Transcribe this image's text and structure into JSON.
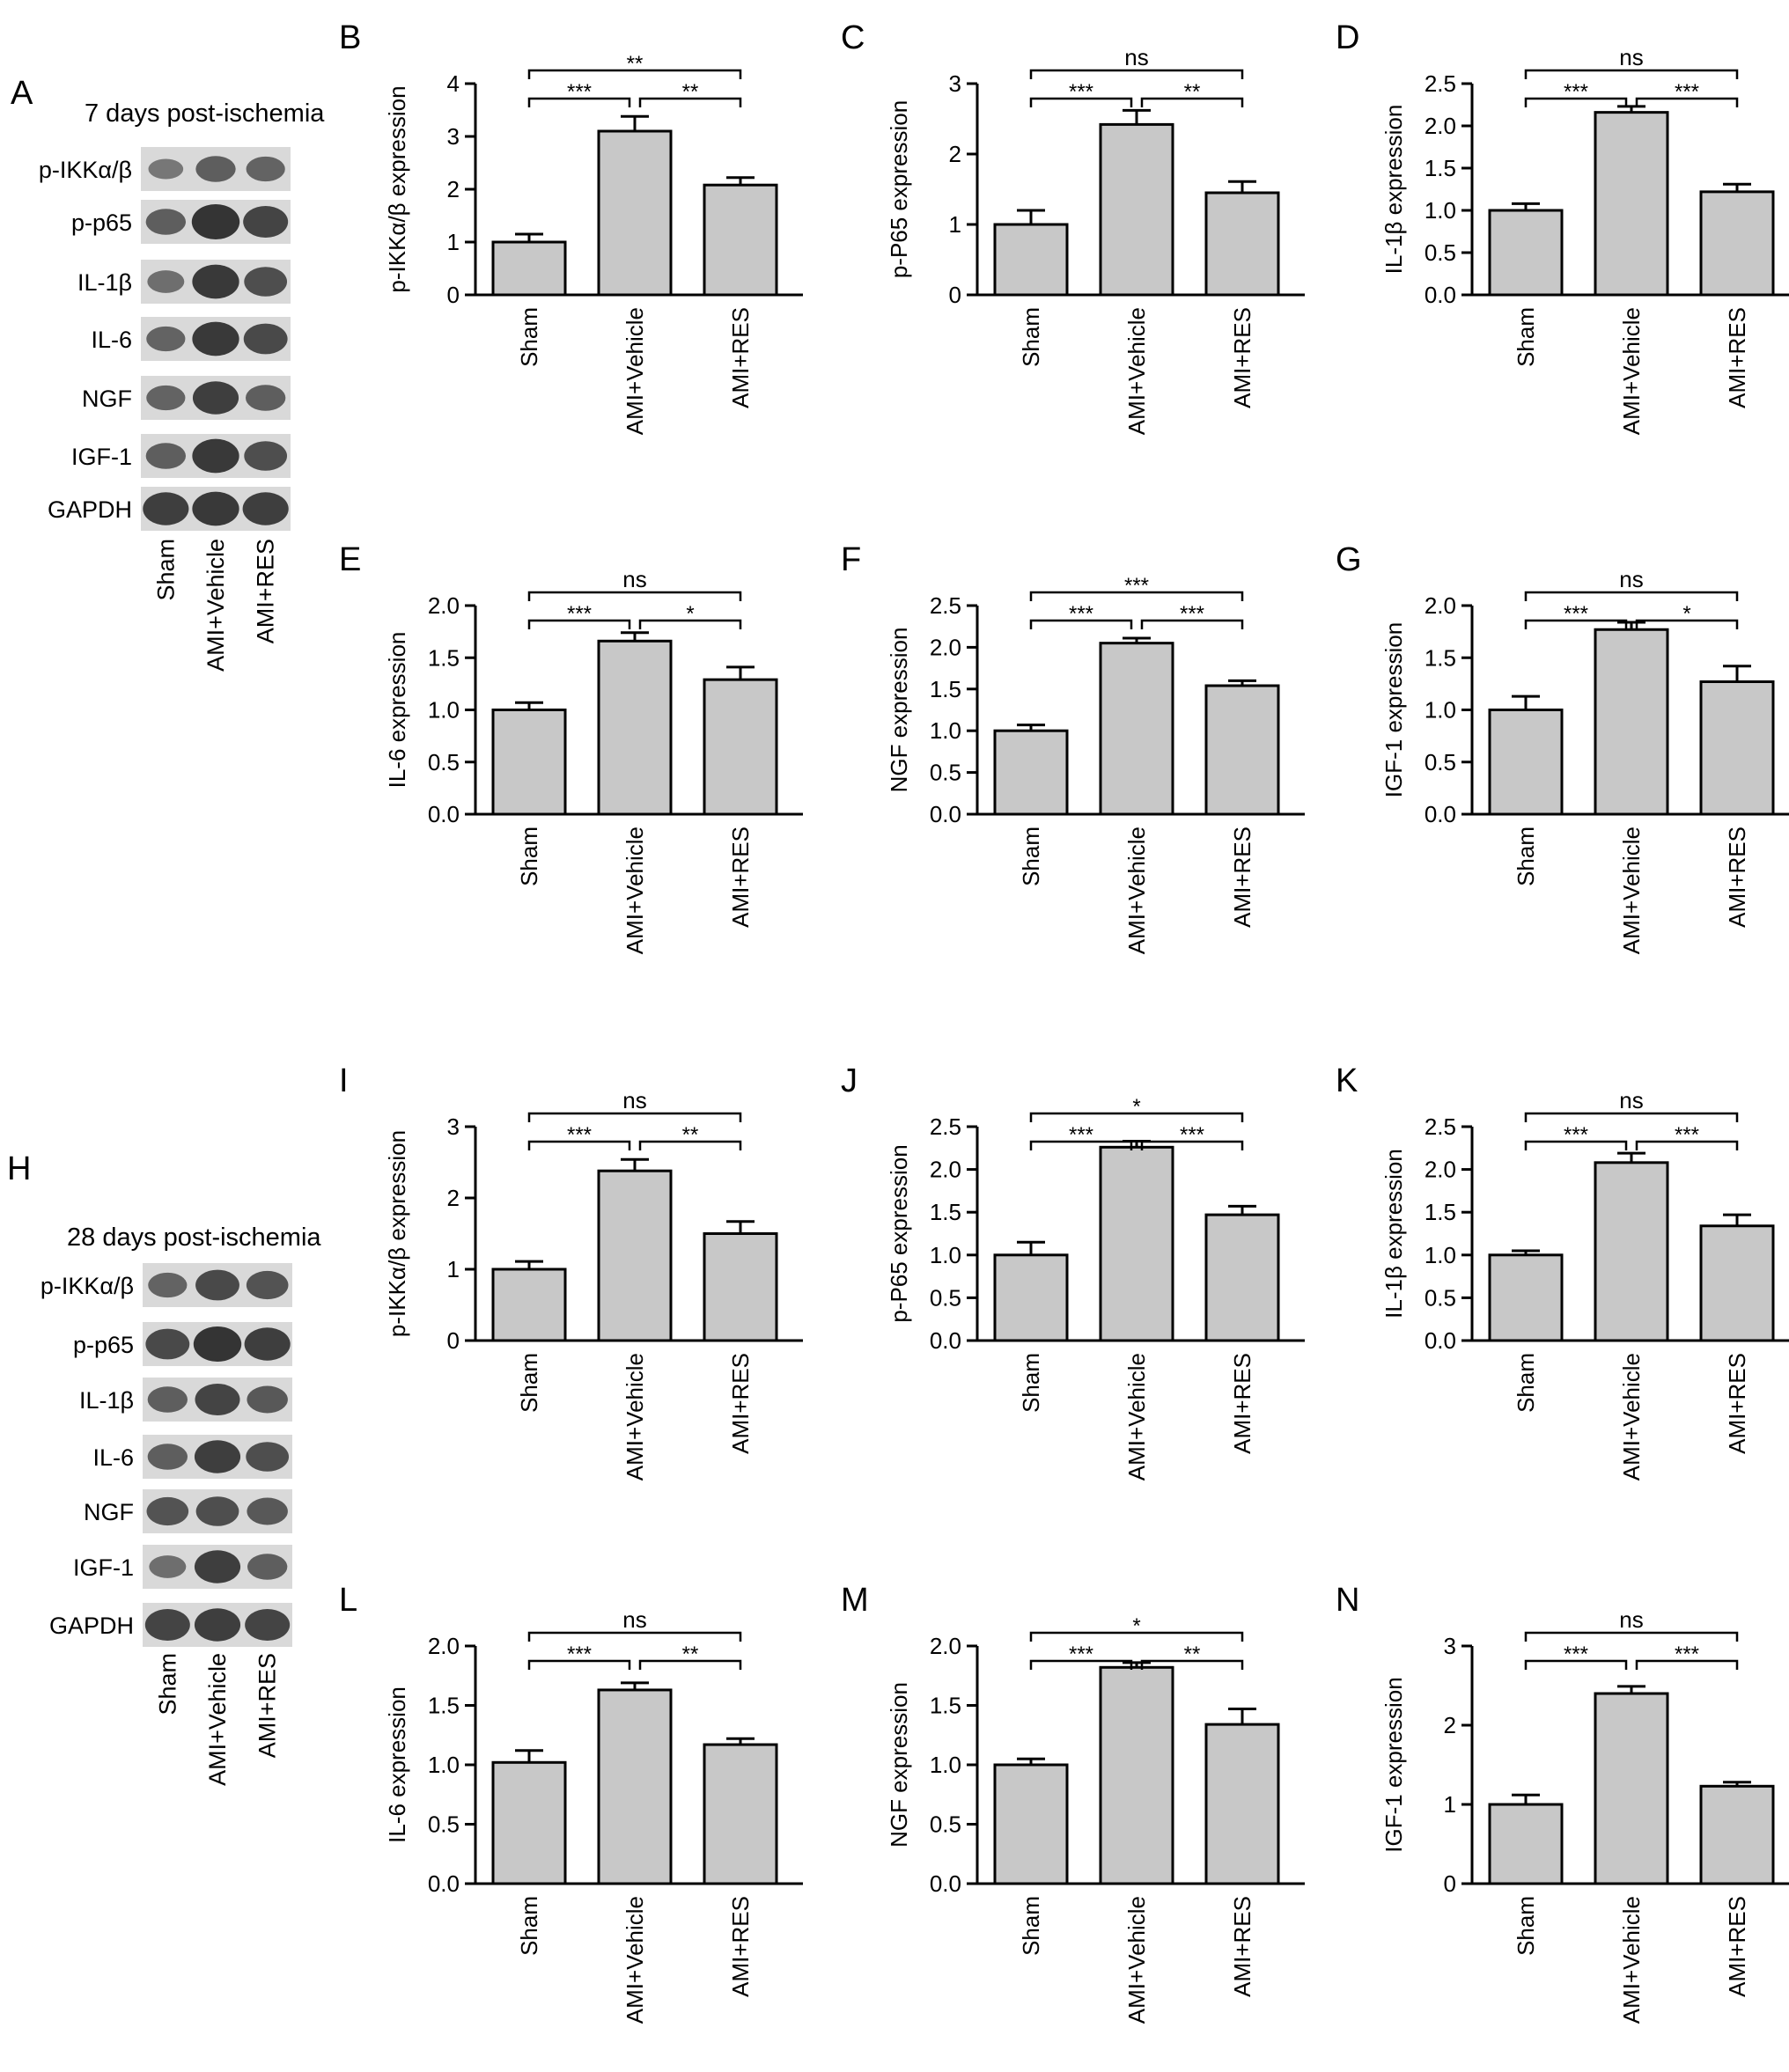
{
  "colors": {
    "bar_fill": "#c8c8c8",
    "stroke": "#000000",
    "blot_band": "#2b2b2b",
    "blot_background": "#d9d9d9"
  },
  "blots": [
    {
      "letter": "A",
      "title": "7 days post-ischemia",
      "rows": [
        {
          "label": "p-IKKα/β",
          "intensities": [
            0.35,
            0.6,
            0.55
          ]
        },
        {
          "label": "p-p65",
          "intensities": [
            0.6,
            1.0,
            0.85
          ]
        },
        {
          "label": "IL-1β",
          "intensities": [
            0.45,
            0.95,
            0.75
          ]
        },
        {
          "label": "IL-6",
          "intensities": [
            0.55,
            0.95,
            0.8
          ]
        },
        {
          "label": "NGF",
          "intensities": [
            0.55,
            0.9,
            0.6
          ]
        },
        {
          "label": "IGF-1",
          "intensities": [
            0.6,
            0.95,
            0.75
          ]
        },
        {
          "label": "GAPDH",
          "intensities": [
            0.9,
            0.95,
            0.9
          ]
        }
      ],
      "lanes": [
        "Sham",
        "AMI+Vehicle",
        "AMI+RES"
      ]
    },
    {
      "letter": "H",
      "title": "28 days post-ischemia",
      "rows": [
        {
          "label": "p-IKKα/β",
          "intensities": [
            0.55,
            0.8,
            0.7
          ]
        },
        {
          "label": "p-p65",
          "intensities": [
            0.8,
            1.0,
            0.9
          ]
        },
        {
          "label": "IL-1β",
          "intensities": [
            0.6,
            0.85,
            0.65
          ]
        },
        {
          "label": "IL-6",
          "intensities": [
            0.6,
            0.9,
            0.75
          ]
        },
        {
          "label": "NGF",
          "intensities": [
            0.7,
            0.75,
            0.65
          ]
        },
        {
          "label": "IGF-1",
          "intensities": [
            0.45,
            0.9,
            0.6
          ]
        },
        {
          "label": "GAPDH",
          "intensities": [
            0.85,
            0.9,
            0.85
          ]
        }
      ],
      "lanes": [
        "Sham",
        "AMI+Vehicle",
        "AMI+RES"
      ]
    }
  ],
  "chart_data": [
    {
      "letter": "B",
      "type": "bar",
      "categories": [
        "Sham",
        "AMI+Vehicle",
        "AMI+RES"
      ],
      "values": [
        1.0,
        3.1,
        2.08
      ],
      "errors": [
        0.15,
        0.28,
        0.14
      ],
      "ylabel": "p-IKKα/β expression",
      "ylim": [
        0,
        4
      ],
      "yticks": [
        "0",
        "1",
        "2",
        "3",
        "4"
      ],
      "significance": [
        "***",
        "**",
        "**"
      ]
    },
    {
      "letter": "C",
      "type": "bar",
      "categories": [
        "Sham",
        "AMI+Vehicle",
        "AMI+RES"
      ],
      "values": [
        1.0,
        2.42,
        1.45
      ],
      "errors": [
        0.2,
        0.2,
        0.16
      ],
      "ylabel": "p-P65 expression",
      "ylim": [
        0,
        3
      ],
      "yticks": [
        "0",
        "1",
        "2",
        "3"
      ],
      "significance": [
        "***",
        "**",
        "ns"
      ]
    },
    {
      "letter": "D",
      "type": "bar",
      "categories": [
        "Sham",
        "AMI+Vehicle",
        "AMI+RES"
      ],
      "values": [
        1.0,
        2.16,
        1.22
      ],
      "errors": [
        0.08,
        0.07,
        0.09
      ],
      "ylabel": "IL-1β expression",
      "ylim": [
        0,
        2.5
      ],
      "yticks": [
        "0.0",
        "0.5",
        "1.0",
        "1.5",
        "2.0",
        "2.5"
      ],
      "significance": [
        "***",
        "***",
        "ns"
      ]
    },
    {
      "letter": "E",
      "type": "bar",
      "categories": [
        "Sham",
        "AMI+Vehicle",
        "AMI+RES"
      ],
      "values": [
        1.0,
        1.66,
        1.29
      ],
      "errors": [
        0.07,
        0.08,
        0.12
      ],
      "ylabel": "IL-6 expression",
      "ylim": [
        0,
        2.0
      ],
      "yticks": [
        "0.0",
        "0.5",
        "1.0",
        "1.5",
        "2.0"
      ],
      "significance": [
        "***",
        "*",
        "ns"
      ]
    },
    {
      "letter": "F",
      "type": "bar",
      "categories": [
        "Sham",
        "AMI+Vehicle",
        "AMI+RES"
      ],
      "values": [
        1.0,
        2.05,
        1.54
      ],
      "errors": [
        0.07,
        0.06,
        0.06
      ],
      "ylabel": "NGF expression",
      "ylim": [
        0,
        2.5
      ],
      "yticks": [
        "0.0",
        "0.5",
        "1.0",
        "1.5",
        "2.0",
        "2.5"
      ],
      "significance": [
        "***",
        "***",
        "***"
      ]
    },
    {
      "letter": "G",
      "type": "bar",
      "categories": [
        "Sham",
        "AMI+Vehicle",
        "AMI+RES"
      ],
      "values": [
        1.0,
        1.77,
        1.27
      ],
      "errors": [
        0.13,
        0.07,
        0.15
      ],
      "ylabel": "IGF-1 expression",
      "ylim": [
        0,
        2.0
      ],
      "yticks": [
        "0.0",
        "0.5",
        "1.0",
        "1.5",
        "2.0"
      ],
      "significance": [
        "***",
        "*",
        "ns"
      ]
    },
    {
      "letter": "I",
      "type": "bar",
      "categories": [
        "Sham",
        "AMI+Vehicle",
        "AMI+RES"
      ],
      "values": [
        1.0,
        2.38,
        1.5
      ],
      "errors": [
        0.11,
        0.16,
        0.17
      ],
      "ylabel": "p-IKKα/β expression",
      "ylim": [
        0,
        3
      ],
      "yticks": [
        "0",
        "1",
        "2",
        "3"
      ],
      "significance": [
        "***",
        "**",
        "ns"
      ]
    },
    {
      "letter": "J",
      "type": "bar",
      "categories": [
        "Sham",
        "AMI+Vehicle",
        "AMI+RES"
      ],
      "values": [
        1.0,
        2.26,
        1.47
      ],
      "errors": [
        0.15,
        0.07,
        0.1
      ],
      "ylabel": "p-P65 expression",
      "ylim": [
        0,
        2.5
      ],
      "yticks": [
        "0.0",
        "0.5",
        "1.0",
        "1.5",
        "2.0",
        "2.5"
      ],
      "significance": [
        "***",
        "***",
        "*"
      ]
    },
    {
      "letter": "K",
      "type": "bar",
      "categories": [
        "Sham",
        "AMI+Vehicle",
        "AMI+RES"
      ],
      "values": [
        1.0,
        2.08,
        1.34
      ],
      "errors": [
        0.05,
        0.11,
        0.13
      ],
      "ylabel": "IL-1β expression",
      "ylim": [
        0,
        2.5
      ],
      "yticks": [
        "0.0",
        "0.5",
        "1.0",
        "1.5",
        "2.0",
        "2.5"
      ],
      "significance": [
        "***",
        "***",
        "ns"
      ]
    },
    {
      "letter": "L",
      "type": "bar",
      "categories": [
        "Sham",
        "AMI+Vehicle",
        "AMI+RES"
      ],
      "values": [
        1.02,
        1.63,
        1.17
      ],
      "errors": [
        0.1,
        0.06,
        0.05
      ],
      "ylabel": "IL-6 expression",
      "ylim": [
        0,
        2.0
      ],
      "yticks": [
        "0.0",
        "0.5",
        "1.0",
        "1.5",
        "2.0"
      ],
      "significance": [
        "***",
        "**",
        "ns"
      ]
    },
    {
      "letter": "M",
      "type": "bar",
      "categories": [
        "Sham",
        "AMI+Vehicle",
        "AMI+RES"
      ],
      "values": [
        1.0,
        1.82,
        1.34
      ],
      "errors": [
        0.05,
        0.04,
        0.13
      ],
      "ylabel": "NGF expression",
      "ylim": [
        0,
        2.0
      ],
      "yticks": [
        "0.0",
        "0.5",
        "1.0",
        "1.5",
        "2.0"
      ],
      "significance": [
        "***",
        "**",
        "*"
      ]
    },
    {
      "letter": "N",
      "type": "bar",
      "categories": [
        "Sham",
        "AMI+Vehicle",
        "AMI+RES"
      ],
      "values": [
        1.0,
        2.4,
        1.23
      ],
      "errors": [
        0.12,
        0.09,
        0.05
      ],
      "ylabel": "IGF-1 expression",
      "ylim": [
        0,
        3
      ],
      "yticks": [
        "0",
        "1",
        "2",
        "3"
      ],
      "significance": [
        "***",
        "***",
        "ns"
      ]
    }
  ]
}
